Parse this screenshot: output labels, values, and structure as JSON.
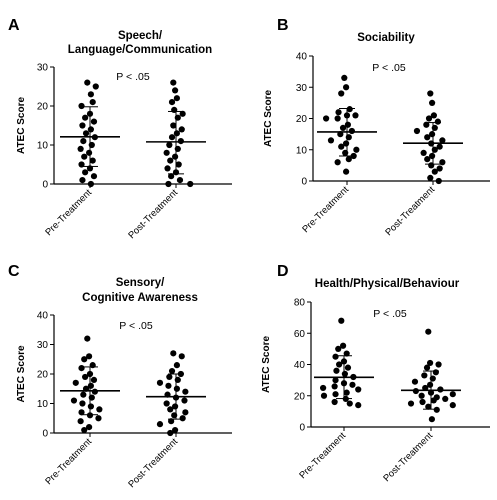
{
  "chart_data": [
    {
      "type": "scatter",
      "letter": "A",
      "title": [
        "Speech/",
        "Language/Communication"
      ],
      "ylabel": "ATEC Score",
      "ylim": [
        0,
        30
      ],
      "yticks": [
        0,
        10,
        20,
        30
      ],
      "annotation": "P < .05",
      "categories": [
        "Pre-Treatment",
        "Post-Treatment"
      ],
      "series": [
        {
          "values": [
            26,
            25,
            23,
            21,
            20,
            18,
            17,
            16,
            15,
            14,
            13,
            12,
            11,
            10,
            9,
            8,
            7,
            6,
            5,
            4,
            3,
            2,
            1,
            0
          ],
          "mean": 12.1,
          "sd_low": 4.5,
          "sd_high": 19.8
        },
        {
          "values": [
            26,
            24,
            22,
            21,
            19,
            18,
            17,
            15,
            14,
            13,
            12,
            11,
            10,
            9,
            8,
            7,
            6,
            5,
            4,
            3,
            2,
            1,
            0,
            0
          ],
          "mean": 10.8,
          "sd_low": 2.6,
          "sd_high": 18.6
        }
      ]
    },
    {
      "type": "scatter",
      "letter": "B",
      "title": [
        "Sociability"
      ],
      "ylabel": "ATEC Score",
      "ylim": [
        0,
        40
      ],
      "yticks": [
        0,
        10,
        20,
        30,
        40
      ],
      "annotation": "P < .05",
      "categories": [
        "Pre-Treatment",
        "Post-Treatment"
      ],
      "series": [
        {
          "values": [
            33,
            30,
            28,
            23,
            22,
            21,
            21,
            20,
            20,
            18,
            17,
            16,
            15,
            14,
            13,
            12,
            11,
            10,
            9,
            8,
            7,
            6,
            3
          ],
          "mean": 15.7,
          "sd_low": 8.0,
          "sd_high": 23.2
        },
        {
          "values": [
            28,
            25,
            21,
            20,
            19,
            18,
            17,
            16,
            15,
            14,
            13,
            12,
            11,
            10,
            9,
            8,
            7,
            6,
            5,
            4,
            3,
            1,
            0
          ],
          "mean": 12.1,
          "sd_low": 5.4,
          "sd_high": 18.7
        }
      ]
    },
    {
      "type": "scatter",
      "letter": "C",
      "title": [
        "Sensory/",
        "Cognitive Awareness"
      ],
      "ylabel": "ATEC Score",
      "ylim": [
        0,
        40
      ],
      "yticks": [
        0,
        10,
        20,
        30,
        40
      ],
      "annotation": "P < .05",
      "categories": [
        "Pre-Treatment",
        "Post-Treatment"
      ],
      "series": [
        {
          "values": [
            32,
            26,
            25,
            23,
            22,
            20,
            19,
            18,
            17,
            16,
            15,
            14,
            13,
            12,
            11,
            10,
            9,
            8,
            7,
            6,
            5,
            4,
            2,
            1
          ],
          "mean": 14.3,
          "sd_low": 6.2,
          "sd_high": 22.4
        },
        {
          "values": [
            27,
            26,
            23,
            21,
            20,
            19,
            18,
            17,
            16,
            15,
            14,
            13,
            12,
            11,
            10,
            9,
            8,
            7,
            6,
            5,
            4,
            3,
            1,
            0
          ],
          "mean": 12.3,
          "sd_low": 4.7,
          "sd_high": 20.0
        }
      ]
    },
    {
      "type": "scatter",
      "letter": "D",
      "title": [
        "Health/Physical/Behaviour"
      ],
      "ylabel": "ATEC Score",
      "ylim": [
        0,
        80
      ],
      "yticks": [
        0,
        20,
        40,
        60,
        80
      ],
      "annotation": "P < .05",
      "categories": [
        "Pre-Treatment",
        "Post-Treatment"
      ],
      "series": [
        {
          "values": [
            68,
            52,
            50,
            47,
            45,
            42,
            40,
            38,
            36,
            34,
            32,
            30,
            28,
            27,
            26,
            25,
            24,
            22,
            21,
            20,
            18,
            16,
            15,
            14
          ],
          "mean": 31.8,
          "sd_low": 18.2,
          "sd_high": 45.6
        },
        {
          "values": [
            61,
            41,
            40,
            38,
            35,
            33,
            31,
            29,
            27,
            25,
            24,
            23,
            22,
            21,
            20,
            19,
            18,
            17,
            16,
            15,
            14,
            13,
            11,
            5
          ],
          "mean": 23.5,
          "sd_low": 11.4,
          "sd_high": 35.8
        }
      ]
    }
  ]
}
